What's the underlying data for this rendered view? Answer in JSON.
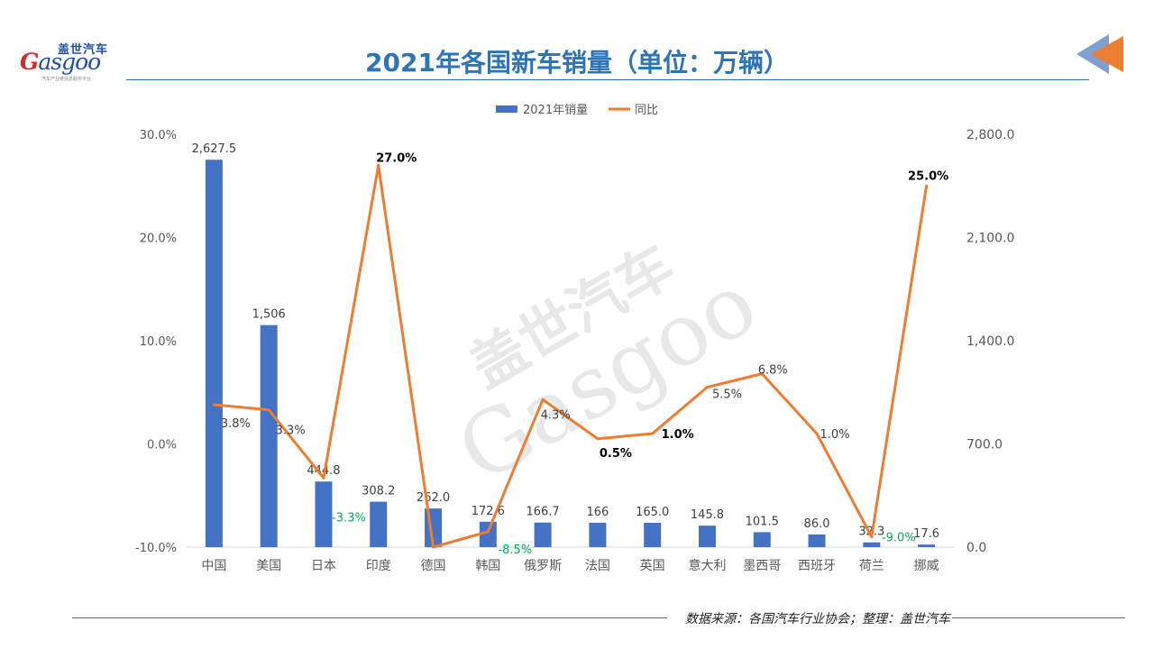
{
  "header": {
    "title": "2021年各国新车销量（单位：万辆）",
    "logo_cn": "盖世汽车",
    "logo_en": "asgoo",
    "logo_en_initial": "G",
    "logo_sub": "汽车产业链信息服务平台"
  },
  "watermark": {
    "cn": "盖世汽车",
    "en": "Gasgoo"
  },
  "footer": {
    "source": "数据来源：各国汽车行业协会；整理：盖世汽车"
  },
  "colors": {
    "bar": "#4472c4",
    "line": "#ed7d31",
    "title": "#2e75b6",
    "negative_label": "#00b050"
  },
  "chart_data": {
    "type": "bar",
    "title": "2021年各国新车销量（单位：万辆）",
    "legend": [
      "2021年销量",
      "同比"
    ],
    "legend_position": "top",
    "categories": [
      "中国",
      "美国",
      "日本",
      "印度",
      "德国",
      "韩国",
      "俄罗斯",
      "法国",
      "英国",
      "意大利",
      "墨西哥",
      "西班牙",
      "荷兰",
      "挪威"
    ],
    "series": [
      {
        "name": "2021年销量",
        "type": "bar",
        "axis": "right",
        "values": [
          2627.5,
          1506,
          444.8,
          308.2,
          262.0,
          172.6,
          166.7,
          166,
          165.0,
          145.8,
          101.5,
          86.0,
          32.3,
          17.6
        ],
        "labels": [
          "2,627.5",
          "1,506",
          "444.8",
          "308.2",
          "262.0",
          "172.6",
          "166.7",
          "166",
          "165.0",
          "145.8",
          "101.5",
          "86.0",
          "32.3",
          "17.6"
        ]
      },
      {
        "name": "同比",
        "type": "line",
        "axis": "left",
        "values": [
          3.8,
          3.3,
          -3.3,
          27.0,
          -10.0,
          -8.5,
          4.3,
          0.5,
          1.0,
          5.5,
          6.8,
          1.0,
          -9.0,
          25.0
        ],
        "labels": [
          "3.8%",
          "3.3%",
          "-3.3%",
          "27.0%",
          "-10.0%",
          "-8.5%",
          "4.3%",
          "0.5%",
          "1.0%",
          "5.5%",
          "6.8%",
          "1.0%",
          "-9.0%",
          "25.0%"
        ]
      }
    ],
    "y_left": {
      "range": [
        -10,
        30
      ],
      "ticks": [
        "-10.0%",
        "0.0%",
        "10.0%",
        "20.0%",
        "30.0%"
      ],
      "tick_values": [
        -10,
        0,
        10,
        20,
        30
      ]
    },
    "y_right": {
      "range": [
        0,
        2800
      ],
      "ticks": [
        "0.0",
        "700.0",
        "1,400.0",
        "2,100.0",
        "2,800.0"
      ],
      "tick_values": [
        0,
        700,
        1400,
        2100,
        2800
      ]
    },
    "grid": false
  }
}
